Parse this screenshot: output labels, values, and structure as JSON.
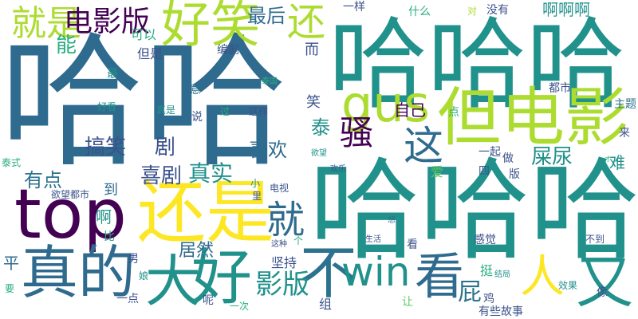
{
  "palette": {
    "dark-purple": "#440154",
    "indigo": "#3b528b",
    "slate-blue": "#2c728e",
    "teal-blue": "#2f6b8e",
    "teal": "#21918c",
    "green-teal": "#28ae80",
    "green": "#5ec962",
    "lime": "#addc30",
    "yellow": "#fde725"
  },
  "words": [
    {
      "text": "哈哈",
      "color": "teal-blue"
    },
    {
      "text": "哈哈哈",
      "color": "teal"
    },
    {
      "text": "哈哈哈",
      "color": "teal"
    },
    {
      "text": "但电影",
      "color": "lime"
    },
    {
      "text": "还是",
      "color": "yellow"
    },
    {
      "text": "好笑",
      "color": "lime"
    },
    {
      "text": "top",
      "color": "dark-purple"
    },
    {
      "text": "真的",
      "color": "teal-blue"
    },
    {
      "text": "就是",
      "color": "lime"
    },
    {
      "text": "电影版",
      "color": "dark-purple"
    },
    {
      "text": "还",
      "color": "lime"
    },
    {
      "text": "gus",
      "color": "lime"
    },
    {
      "text": "好",
      "color": "teal"
    },
    {
      "text": "大",
      "color": "teal"
    },
    {
      "text": "不",
      "color": "slate-blue"
    },
    {
      "text": "win",
      "color": "teal"
    },
    {
      "text": "看",
      "color": "teal-blue"
    },
    {
      "text": "人",
      "color": "yellow"
    },
    {
      "text": "又",
      "color": "teal"
    },
    {
      "text": "就",
      "color": "teal-blue"
    },
    {
      "text": "这",
      "color": "teal-blue"
    },
    {
      "text": "骚",
      "color": "dark-purple"
    },
    {
      "text": "屎尿",
      "color": "teal"
    },
    {
      "text": "影版",
      "color": "teal"
    },
    {
      "text": "屁",
      "color": "slate-blue"
    },
    {
      "text": "喜欢",
      "color": "teal-blue"
    },
    {
      "text": "有点",
      "color": "slate-blue"
    },
    {
      "text": "搞笑",
      "color": "indigo"
    },
    {
      "text": "喜剧",
      "color": "indigo"
    },
    {
      "text": "真实",
      "color": "teal"
    },
    {
      "text": "剧",
      "color": "indigo"
    },
    {
      "text": "最后",
      "color": "teal-blue"
    },
    {
      "text": "能",
      "color": "green-teal"
    },
    {
      "text": "可以",
      "color": "green-teal"
    },
    {
      "text": "但是",
      "color": "indigo"
    },
    {
      "text": "编剧",
      "color": "indigo"
    },
    {
      "text": "什么",
      "color": "green-teal"
    },
    {
      "text": "一样",
      "color": "indigo"
    },
    {
      "text": "对",
      "color": "lime"
    },
    {
      "text": "没有",
      "color": "indigo"
    },
    {
      "text": "啊啊啊",
      "color": "teal"
    },
    {
      "text": "而",
      "color": "indigo"
    },
    {
      "text": "泰国",
      "color": "green-teal"
    },
    {
      "text": "最",
      "color": "teal"
    },
    {
      "text": "意",
      "color": "slate-blue"
    },
    {
      "text": "笑",
      "color": "indigo"
    },
    {
      "text": "都市",
      "color": "indigo"
    },
    {
      "text": "泰",
      "color": "teal"
    },
    {
      "text": "点",
      "color": "green-teal"
    },
    {
      "text": "主题",
      "color": "slate-blue"
    },
    {
      "text": "来",
      "color": "indigo"
    },
    {
      "text": "好看",
      "color": "teal"
    },
    {
      "text": "真是",
      "color": "teal"
    },
    {
      "text": "说",
      "color": "indigo"
    },
    {
      "text": "过",
      "color": "green-teal"
    },
    {
      "text": "这样",
      "color": "indigo"
    },
    {
      "text": "自己",
      "color": "dark-purple"
    },
    {
      "text": "一起",
      "color": "indigo"
    },
    {
      "text": "做",
      "color": "indigo"
    },
    {
      "text": "版",
      "color": "indigo"
    },
    {
      "text": "难",
      "color": "teal"
    },
    {
      "text": "才",
      "color": "green-teal"
    },
    {
      "text": "爱",
      "color": "green"
    },
    {
      "text": "四",
      "color": "indigo"
    },
    {
      "text": "欲望",
      "color": "teal"
    },
    {
      "text": "欢乐",
      "color": "indigo"
    },
    {
      "text": "泰式",
      "color": "green-teal"
    },
    {
      "text": "到",
      "color": "teal-blue"
    },
    {
      "text": "欲望都市",
      "color": "indigo"
    },
    {
      "text": "小",
      "color": "teal"
    },
    {
      "text": "里",
      "color": "indigo"
    },
    {
      "text": "电视",
      "color": "indigo"
    },
    {
      "text": "啊",
      "color": "teal"
    },
    {
      "text": "比",
      "color": "green-teal"
    },
    {
      "text": "男",
      "color": "indigo"
    },
    {
      "text": "居然",
      "color": "teal-blue"
    },
    {
      "text": "平",
      "color": "teal-blue"
    },
    {
      "text": "要",
      "color": "green-teal"
    },
    {
      "text": "娘",
      "color": "teal"
    },
    {
      "text": "一点",
      "color": "indigo"
    },
    {
      "text": "呢",
      "color": "indigo"
    },
    {
      "text": "一次",
      "color": "green-teal"
    },
    {
      "text": "坚持",
      "color": "indigo"
    },
    {
      "text": "这种",
      "color": "indigo"
    },
    {
      "text": "个",
      "color": "green-teal"
    },
    {
      "text": "生活",
      "color": "indigo"
    },
    {
      "text": "想",
      "color": "slate-blue"
    },
    {
      "text": "看",
      "color": "indigo"
    },
    {
      "text": "感觉",
      "color": "indigo"
    },
    {
      "text": "不到",
      "color": "indigo"
    },
    {
      "text": "挺",
      "color": "green-teal"
    },
    {
      "text": "结局",
      "color": "teal"
    },
    {
      "text": "组",
      "color": "indigo"
    },
    {
      "text": "让",
      "color": "green"
    },
    {
      "text": "鸡",
      "color": "indigo"
    },
    {
      "text": "有些故事",
      "color": "indigo"
    },
    {
      "text": "效果",
      "color": "teal"
    },
    {
      "text": "像",
      "color": "indigo"
    }
  ]
}
